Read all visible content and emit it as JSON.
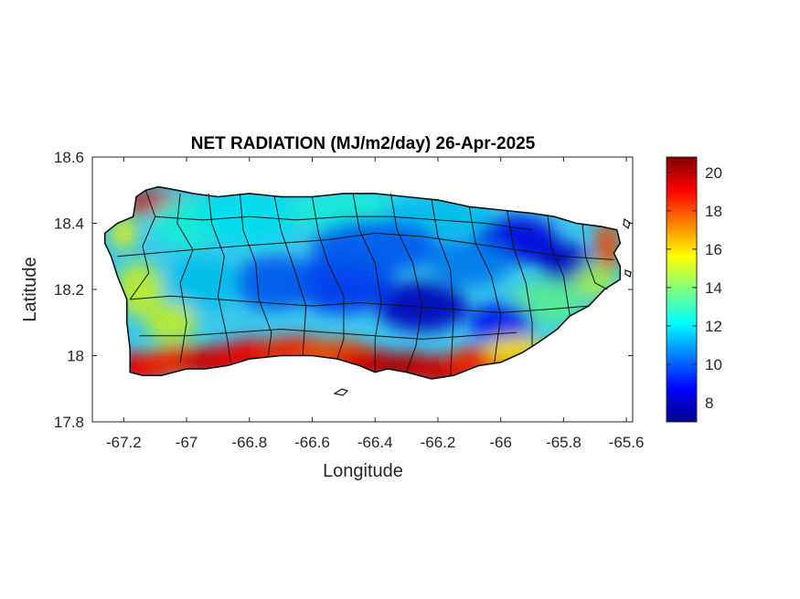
{
  "chart_data": {
    "type": "heatmap",
    "title": "NET RADIATION (MJ/m2/day) 26-Apr-2025",
    "xlabel": "Longitude",
    "ylabel": "Latitude",
    "xlim": [
      -67.3,
      -65.58
    ],
    "ylim": [
      17.8,
      18.6
    ],
    "xticks": [
      -67.2,
      -67,
      -66.8,
      -66.6,
      -66.4,
      -66.2,
      -66,
      -65.8,
      -65.6
    ],
    "xtick_labels": [
      "-67.2",
      "-67",
      "-66.8",
      "-66.6",
      "-66.4",
      "-66.2",
      "-66",
      "-65.8",
      "-65.6"
    ],
    "yticks": [
      17.8,
      18,
      18.2,
      18.4,
      18.6
    ],
    "ytick_labels": [
      "17.8",
      "18",
      "18.2",
      "18.4",
      "18.6"
    ],
    "colorbar": {
      "colormap": "jet",
      "range": [
        7,
        20.8
      ],
      "ticks": [
        8,
        10,
        12,
        14,
        16,
        18,
        20
      ],
      "tick_labels": [
        "8",
        "10",
        "12",
        "14",
        "16",
        "18",
        "20"
      ]
    },
    "regions": [
      {
        "area": "south coast",
        "value": 19.5
      },
      {
        "area": "northwest corner",
        "value": 19
      },
      {
        "area": "east coast",
        "value": 18
      },
      {
        "area": "west coast",
        "value": 15
      },
      {
        "area": "north coast",
        "value": 13
      },
      {
        "area": "central interior",
        "value": 10
      },
      {
        "area": "south-central interior",
        "value": 8
      },
      {
        "area": "northeast interior",
        "value": 8.5
      }
    ],
    "grid": false,
    "legend": "colorbar right"
  }
}
